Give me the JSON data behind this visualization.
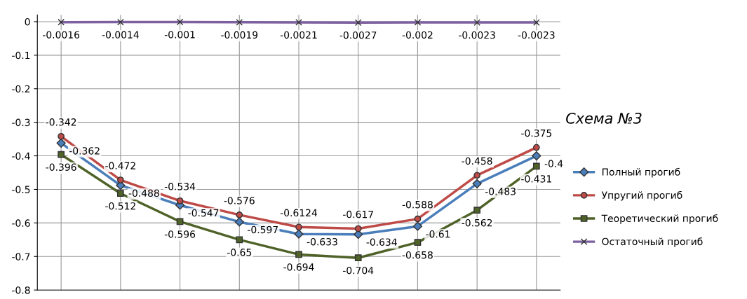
{
  "chart_data": {
    "type": "line",
    "categories": [
      null,
      null,
      null,
      null,
      null,
      null,
      null,
      null,
      null
    ],
    "series": [
      {
        "name": "Полный прогиб",
        "color": "#4a7ebb",
        "marker": "diamond",
        "values": [
          -0.362,
          -0.488,
          -0.547,
          -0.597,
          -0.633,
          -0.634,
          -0.61,
          -0.483,
          -0.4
        ]
      },
      {
        "name": "Упругий прогиб",
        "color": "#be4b48",
        "marker": "circle",
        "values": [
          -0.342,
          -0.472,
          -0.534,
          -0.576,
          -0.6124,
          -0.617,
          -0.588,
          -0.458,
          -0.375
        ]
      },
      {
        "name": "Теоретический прогиб",
        "color": "#4f6228",
        "marker": "square",
        "values": [
          -0.396,
          -0.512,
          -0.596,
          -0.65,
          -0.694,
          -0.704,
          -0.658,
          -0.562,
          -0.431
        ]
      },
      {
        "name": "Остаточный прогиб",
        "color": "#7d60a0",
        "marker": "cross",
        "values": [
          -0.0016,
          -0.0014,
          -0.001,
          -0.0019,
          -0.0021,
          -0.0027,
          -0.002,
          -0.0023,
          -0.0023
        ]
      }
    ],
    "ylim": [
      -0.8,
      0.02
    ],
    "yticks": [
      -0.8,
      -0.7,
      -0.6,
      -0.5,
      -0.4,
      -0.3,
      -0.2,
      -0.1,
      0
    ],
    "annotations": [
      "Схема №3"
    ],
    "data_labels": true,
    "grid": true,
    "legend": "right",
    "tick_labels": "y",
    "line_style": "solid"
  }
}
